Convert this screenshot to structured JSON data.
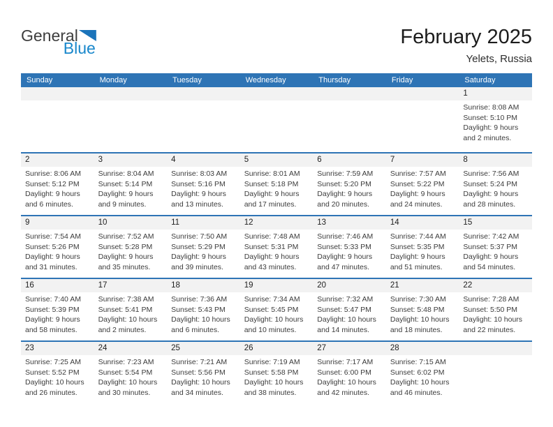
{
  "logo": {
    "general": "General",
    "blue": "Blue"
  },
  "header": {
    "title": "February 2025",
    "subtitle": "Yelets, Russia"
  },
  "colors": {
    "header_blue": "#2E74B5",
    "row_line_blue": "#2E74B5",
    "band_gray": "#F2F2F2",
    "logo_blue": "#1887CB",
    "logo_triangle_blue": "#1B74BA",
    "logo_dark": "#3E3E3E"
  },
  "weekdays": [
    "Sunday",
    "Monday",
    "Tuesday",
    "Wednesday",
    "Thursday",
    "Friday",
    "Saturday"
  ],
  "weeks": [
    [
      null,
      null,
      null,
      null,
      null,
      null,
      {
        "day": "1",
        "sunrise": "Sunrise: 8:08 AM",
        "sunset": "Sunset: 5:10 PM",
        "daylight": "Daylight: 9 hours and 2 minutes."
      }
    ],
    [
      {
        "day": "2",
        "sunrise": "Sunrise: 8:06 AM",
        "sunset": "Sunset: 5:12 PM",
        "daylight": "Daylight: 9 hours and 6 minutes."
      },
      {
        "day": "3",
        "sunrise": "Sunrise: 8:04 AM",
        "sunset": "Sunset: 5:14 PM",
        "daylight": "Daylight: 9 hours and 9 minutes."
      },
      {
        "day": "4",
        "sunrise": "Sunrise: 8:03 AM",
        "sunset": "Sunset: 5:16 PM",
        "daylight": "Daylight: 9 hours and 13 minutes."
      },
      {
        "day": "5",
        "sunrise": "Sunrise: 8:01 AM",
        "sunset": "Sunset: 5:18 PM",
        "daylight": "Daylight: 9 hours and 17 minutes."
      },
      {
        "day": "6",
        "sunrise": "Sunrise: 7:59 AM",
        "sunset": "Sunset: 5:20 PM",
        "daylight": "Daylight: 9 hours and 20 minutes."
      },
      {
        "day": "7",
        "sunrise": "Sunrise: 7:57 AM",
        "sunset": "Sunset: 5:22 PM",
        "daylight": "Daylight: 9 hours and 24 minutes."
      },
      {
        "day": "8",
        "sunrise": "Sunrise: 7:56 AM",
        "sunset": "Sunset: 5:24 PM",
        "daylight": "Daylight: 9 hours and 28 minutes."
      }
    ],
    [
      {
        "day": "9",
        "sunrise": "Sunrise: 7:54 AM",
        "sunset": "Sunset: 5:26 PM",
        "daylight": "Daylight: 9 hours and 31 minutes."
      },
      {
        "day": "10",
        "sunrise": "Sunrise: 7:52 AM",
        "sunset": "Sunset: 5:28 PM",
        "daylight": "Daylight: 9 hours and 35 minutes."
      },
      {
        "day": "11",
        "sunrise": "Sunrise: 7:50 AM",
        "sunset": "Sunset: 5:29 PM",
        "daylight": "Daylight: 9 hours and 39 minutes."
      },
      {
        "day": "12",
        "sunrise": "Sunrise: 7:48 AM",
        "sunset": "Sunset: 5:31 PM",
        "daylight": "Daylight: 9 hours and 43 minutes."
      },
      {
        "day": "13",
        "sunrise": "Sunrise: 7:46 AM",
        "sunset": "Sunset: 5:33 PM",
        "daylight": "Daylight: 9 hours and 47 minutes."
      },
      {
        "day": "14",
        "sunrise": "Sunrise: 7:44 AM",
        "sunset": "Sunset: 5:35 PM",
        "daylight": "Daylight: 9 hours and 51 minutes."
      },
      {
        "day": "15",
        "sunrise": "Sunrise: 7:42 AM",
        "sunset": "Sunset: 5:37 PM",
        "daylight": "Daylight: 9 hours and 54 minutes."
      }
    ],
    [
      {
        "day": "16",
        "sunrise": "Sunrise: 7:40 AM",
        "sunset": "Sunset: 5:39 PM",
        "daylight": "Daylight: 9 hours and 58 minutes."
      },
      {
        "day": "17",
        "sunrise": "Sunrise: 7:38 AM",
        "sunset": "Sunset: 5:41 PM",
        "daylight": "Daylight: 10 hours and 2 minutes."
      },
      {
        "day": "18",
        "sunrise": "Sunrise: 7:36 AM",
        "sunset": "Sunset: 5:43 PM",
        "daylight": "Daylight: 10 hours and 6 minutes."
      },
      {
        "day": "19",
        "sunrise": "Sunrise: 7:34 AM",
        "sunset": "Sunset: 5:45 PM",
        "daylight": "Daylight: 10 hours and 10 minutes."
      },
      {
        "day": "20",
        "sunrise": "Sunrise: 7:32 AM",
        "sunset": "Sunset: 5:47 PM",
        "daylight": "Daylight: 10 hours and 14 minutes."
      },
      {
        "day": "21",
        "sunrise": "Sunrise: 7:30 AM",
        "sunset": "Sunset: 5:48 PM",
        "daylight": "Daylight: 10 hours and 18 minutes."
      },
      {
        "day": "22",
        "sunrise": "Sunrise: 7:28 AM",
        "sunset": "Sunset: 5:50 PM",
        "daylight": "Daylight: 10 hours and 22 minutes."
      }
    ],
    [
      {
        "day": "23",
        "sunrise": "Sunrise: 7:25 AM",
        "sunset": "Sunset: 5:52 PM",
        "daylight": "Daylight: 10 hours and 26 minutes."
      },
      {
        "day": "24",
        "sunrise": "Sunrise: 7:23 AM",
        "sunset": "Sunset: 5:54 PM",
        "daylight": "Daylight: 10 hours and 30 minutes."
      },
      {
        "day": "25",
        "sunrise": "Sunrise: 7:21 AM",
        "sunset": "Sunset: 5:56 PM",
        "daylight": "Daylight: 10 hours and 34 minutes."
      },
      {
        "day": "26",
        "sunrise": "Sunrise: 7:19 AM",
        "sunset": "Sunset: 5:58 PM",
        "daylight": "Daylight: 10 hours and 38 minutes."
      },
      {
        "day": "27",
        "sunrise": "Sunrise: 7:17 AM",
        "sunset": "Sunset: 6:00 PM",
        "daylight": "Daylight: 10 hours and 42 minutes."
      },
      {
        "day": "28",
        "sunrise": "Sunrise: 7:15 AM",
        "sunset": "Sunset: 6:02 PM",
        "daylight": "Daylight: 10 hours and 46 minutes."
      },
      null
    ]
  ]
}
